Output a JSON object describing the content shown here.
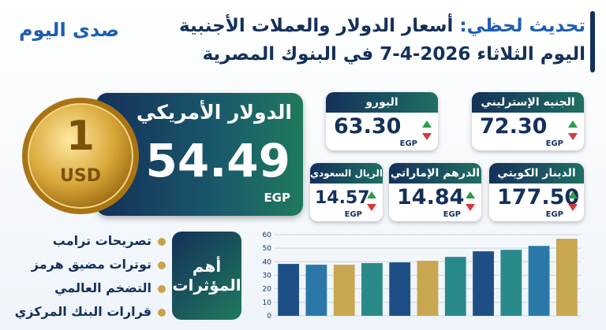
{
  "header": {
    "logo": "صدى اليوم",
    "title_prefix": "تحديث لحظي:",
    "title_line1": "أسعار الدولار والعملات الأجنبية",
    "title_line2": "اليوم الثلاثاء 2026-4-7 في البنوك المصرية"
  },
  "main_rate": {
    "coin_value": "1",
    "coin_currency": "USD",
    "name": "الدولار الأمريكي",
    "value": "54.49",
    "unit": "EGP"
  },
  "cards": [
    {
      "name": "الجنيه الإسترليني",
      "value": "72.30",
      "unit": "EGP"
    },
    {
      "name": "اليورو",
      "value": "63.30",
      "unit": "EGP"
    },
    {
      "name": "الدينار الكويتي",
      "value": "177.50",
      "unit": "EGP"
    },
    {
      "name": "الدرهم الإماراتي",
      "value": "14.84",
      "unit": "EGP"
    },
    {
      "name": "الريال السعودي",
      "value": "14.57",
      "unit": "EGP"
    }
  ],
  "factors": {
    "title": "أهم المؤثرات",
    "items": [
      "تصريحات ترامب",
      "توترات مضيق هرمز",
      "التضخم العالمي",
      "قرارات البنك المركزي"
    ]
  },
  "chart_data": {
    "type": "bar",
    "categories": [
      null,
      null,
      null,
      null,
      null,
      null,
      null,
      null,
      null,
      null,
      null
    ],
    "values": [
      38.4,
      37.8,
      37.8,
      39,
      39.5,
      40.7,
      43.6,
      47.7,
      48.8,
      51.7,
      57
    ],
    "colors": [
      "#1d4f86",
      "#2a78a8",
      "#c9a650",
      "#2a8a8a",
      "#1d4f86",
      "#c9a650",
      "#2a8a8a",
      "#1d4f86",
      "#2a8a8a",
      "#2a78a8",
      "#c9a650"
    ],
    "ylim": [
      0,
      60
    ],
    "yticks": [
      0,
      10,
      20,
      30,
      40,
      50,
      60
    ],
    "grid": true
  }
}
